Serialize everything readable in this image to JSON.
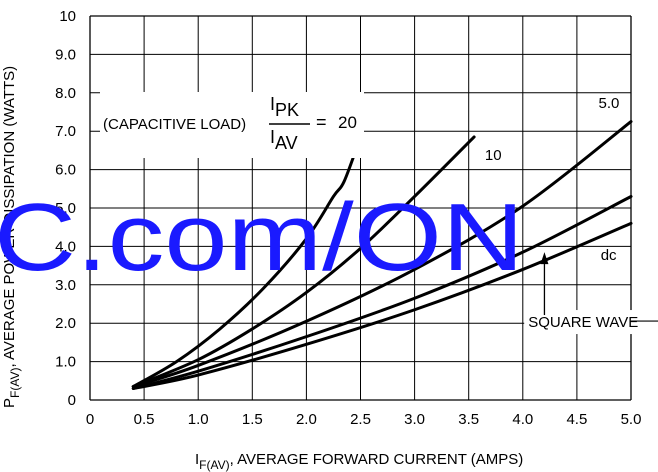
{
  "chart_data": {
    "type": "line",
    "title": "",
    "xlabel": {
      "main": "I",
      "sub": "F(AV)",
      "rest": ", AVERAGE FORWARD CURRENT (AMPS)"
    },
    "ylabel": {
      "main": "P",
      "sub": "F(AV)",
      "rest": ", AVERAGE POWER DISSIPATION (WATTS)"
    },
    "xlim": [
      0,
      5
    ],
    "ylim": [
      0,
      10
    ],
    "xticks": [
      "0",
      "0.5",
      "1.0",
      "1.5",
      "2.0",
      "2.5",
      "3.0",
      "3.5",
      "4.0",
      "4.5",
      "5.0"
    ],
    "yticks": [
      "0",
      "1.0",
      "2.0",
      "3.0",
      "4.0",
      "5.0",
      "6.0",
      "7.0",
      "8.0",
      "9.0",
      "10"
    ],
    "grid": true,
    "annotation": {
      "prefix": "(CAPACITIVE LOAD)",
      "num_main": "I",
      "num_sub": "PK",
      "den_main": "I",
      "den_sub": "AV",
      "equals": "=",
      "value": "20"
    },
    "series": [
      {
        "name": "20",
        "x": [
          0.4,
          0.8,
          1.2,
          1.6,
          2.0,
          2.25,
          2.35,
          2.5
        ],
        "y": [
          0.35,
          1.0,
          1.85,
          2.9,
          4.2,
          5.3,
          5.7,
          6.85
        ]
      },
      {
        "name": "10",
        "x": [
          0.4,
          1.0,
          1.5,
          2.0,
          2.5,
          3.0,
          3.55
        ],
        "y": [
          0.35,
          1.05,
          1.85,
          2.8,
          3.95,
          5.3,
          6.85
        ]
      },
      {
        "name": "5.0",
        "x": [
          0.4,
          1.0,
          2.0,
          3.0,
          4.0,
          5.0
        ],
        "y": [
          0.35,
          0.9,
          2.05,
          3.4,
          5.05,
          7.25
        ]
      },
      {
        "name": "",
        "x": [
          0.4,
          1.0,
          2.0,
          3.0,
          4.0,
          5.0
        ],
        "y": [
          0.3,
          0.75,
          1.65,
          2.65,
          3.85,
          5.3
        ]
      },
      {
        "name": "dc",
        "x": [
          0.4,
          1.0,
          2.0,
          3.0,
          4.0,
          5.0
        ],
        "y": [
          0.3,
          0.65,
          1.45,
          2.35,
          3.4,
          4.6
        ]
      }
    ],
    "curve_labels": [
      {
        "text": "10",
        "x": 3.65,
        "y": 6.25
      },
      {
        "text": "5.0",
        "x": 4.7,
        "y": 7.6
      },
      {
        "text": "dc",
        "x": 4.72,
        "y": 3.65
      }
    ],
    "square_wave_label": {
      "text": "SQUARE WAVE",
      "x": 4.05,
      "y": 1.9
    },
    "watermark": "C.com/ON"
  }
}
